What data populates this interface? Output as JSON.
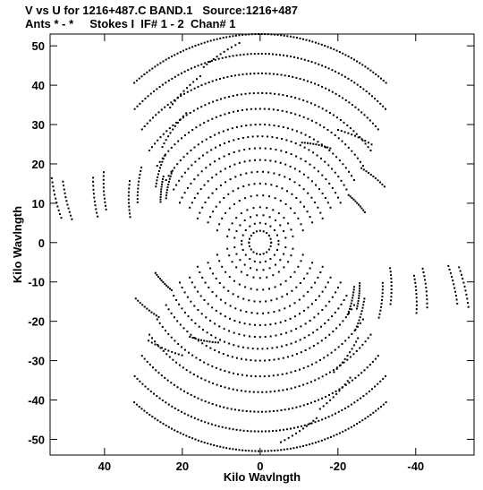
{
  "header": {
    "line1": "V vs U for 1216+487.C BAND.1   Source:1216+487",
    "line2": "Ants * - *     Stokes I  IF# 1 - 2  Chan# 1"
  },
  "chart_data": {
    "type": "scatter",
    "title": "V vs U for 1216+487.C BAND.1   Source:1216+487",
    "subtitle": "Ants * - *     Stokes I  IF# 1 - 2  Chan# 1",
    "xlabel": "Kilo Wavlngth",
    "ylabel": "Kilo Wavlngth",
    "xlim": [
      54,
      -55
    ],
    "ylim": [
      -54,
      53
    ],
    "x_reversed": true,
    "xticks": [
      40,
      20,
      0,
      -20,
      -40
    ],
    "xtick_labels": [
      "40",
      "20",
      "0",
      "-20",
      "-40"
    ],
    "yticks": [
      50,
      40,
      30,
      20,
      10,
      0,
      -10,
      -20,
      -30,
      -40,
      -50
    ],
    "ytick_labels": [
      "50",
      "40",
      "30",
      "20",
      "10",
      "0",
      "-10",
      "-20",
      "-30",
      "-40",
      "-50"
    ],
    "grid": false,
    "marker": "dot",
    "uv_arcs": [
      {
        "radius": 3,
        "start_angle_deg": 180,
        "end_angle_deg": 360
      },
      {
        "radius": 5,
        "start_angle_deg": 185,
        "end_angle_deg": 355
      },
      {
        "radius": 7,
        "start_angle_deg": 190,
        "end_angle_deg": 350
      },
      {
        "radius": 9,
        "start_angle_deg": 190,
        "end_angle_deg": 350
      },
      {
        "radius": 12,
        "start_angle_deg": 195,
        "end_angle_deg": 345
      },
      {
        "radius": 15,
        "start_angle_deg": 200,
        "end_angle_deg": 340
      },
      {
        "radius": 18,
        "start_angle_deg": 200,
        "end_angle_deg": 340
      },
      {
        "radius": 21,
        "start_angle_deg": 205,
        "end_angle_deg": 335
      },
      {
        "radius": 24,
        "start_angle_deg": 205,
        "end_angle_deg": 335
      },
      {
        "radius": 27,
        "start_angle_deg": 210,
        "end_angle_deg": 330
      },
      {
        "radius": 30,
        "start_angle_deg": 212,
        "end_angle_deg": 328
      },
      {
        "radius": 34,
        "start_angle_deg": 215,
        "end_angle_deg": 325
      },
      {
        "radius": 38,
        "start_angle_deg": 218,
        "end_angle_deg": 322
      },
      {
        "radius": 43,
        "start_angle_deg": 222,
        "end_angle_deg": 318
      },
      {
        "radius": 48,
        "start_angle_deg": 225,
        "end_angle_deg": 315
      },
      {
        "radius": 53,
        "start_angle_deg": 230,
        "end_angle_deg": 310
      }
    ],
    "uv_tracks": [
      {
        "radius": 51,
        "angle_deg": 78,
        "length_deg": 12
      },
      {
        "radius": 45,
        "angle_deg": 63,
        "length_deg": 14
      },
      {
        "radius": 38,
        "angle_deg": 52,
        "length_deg": 16
      },
      {
        "radius": 33,
        "angle_deg": 35,
        "length_deg": 14
      },
      {
        "radius": 30,
        "angle_deg": 28,
        "length_deg": 12
      },
      {
        "radius": 56,
        "angle_deg": 12,
        "length_deg": 10
      },
      {
        "radius": 46,
        "angle_deg": 15,
        "length_deg": 12
      },
      {
        "radius": 37,
        "angle_deg": 18,
        "length_deg": 14
      },
      {
        "radius": 30,
        "angle_deg": 120,
        "length_deg": 14
      },
      {
        "radius": 38,
        "angle_deg": 132,
        "length_deg": 14
      },
      {
        "radius": 35,
        "angle_deg": 150,
        "length_deg": 12
      },
      {
        "radius": 28,
        "angle_deg": 158,
        "length_deg": 12
      },
      {
        "radius": 53,
        "angle_deg": 192,
        "length_deg": 10
      },
      {
        "radius": 44,
        "angle_deg": 198,
        "length_deg": 12
      },
      {
        "radius": 36,
        "angle_deg": 205,
        "length_deg": 14
      },
      {
        "radius": 29,
        "angle_deg": 212,
        "length_deg": 14
      }
    ]
  }
}
